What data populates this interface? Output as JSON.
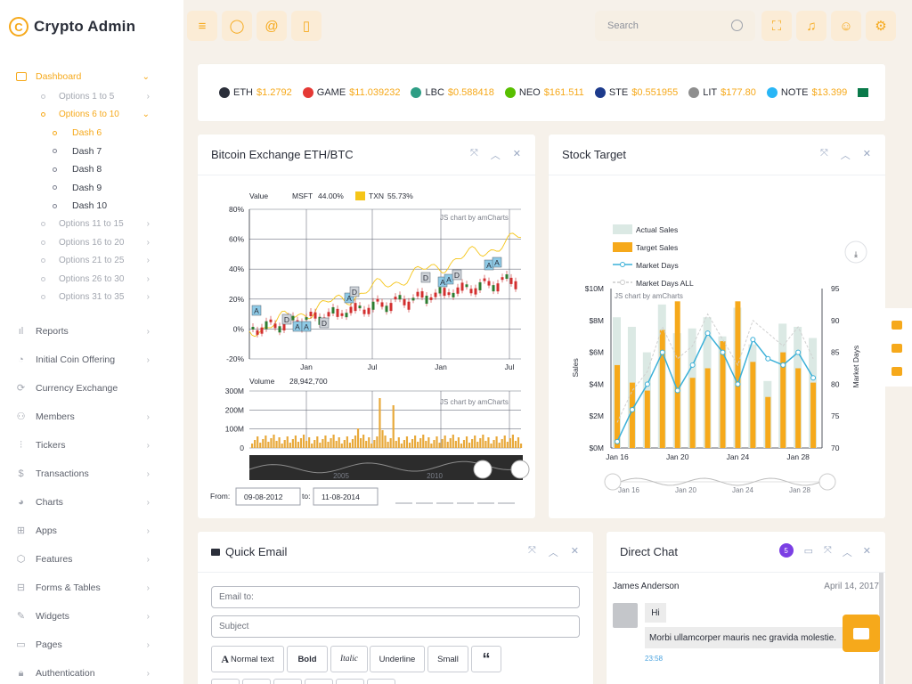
{
  "app": {
    "title": "Crypto Admin",
    "logo_glyph": "C"
  },
  "sidebar": {
    "dashboard": {
      "label": "Dashboard"
    },
    "options": [
      {
        "label": "Options 1 to 5",
        "active": false
      },
      {
        "label": "Options 6 to 10",
        "active": true
      }
    ],
    "dash_items": [
      "Dash 6",
      "Dash 7",
      "Dash 8",
      "Dash 9",
      "Dash 10"
    ],
    "options_more": [
      "Options 11 to 15",
      "Options 16 to 20",
      "Options 21 to 25",
      "Options 26 to 30",
      "Options 31 to 35"
    ],
    "main_items": [
      {
        "label": "Reports",
        "icon": "bar-chart-icon",
        "glyph": "ıl",
        "chevron": true
      },
      {
        "label": "Initial Coin Offering",
        "icon": "pie-chart-icon",
        "glyph": "◔",
        "chevron": true
      },
      {
        "label": "Currency Exchange",
        "icon": "refresh-icon",
        "glyph": "⟳",
        "chevron": false
      },
      {
        "label": "Members",
        "icon": "users-icon",
        "glyph": "⚇",
        "chevron": true
      },
      {
        "label": "Tickers",
        "icon": "sliders-icon",
        "glyph": "⫶",
        "chevron": true
      },
      {
        "label": "Transactions",
        "icon": "dollar-icon",
        "glyph": "$",
        "chevron": true
      },
      {
        "label": "Charts",
        "icon": "pie-icon",
        "glyph": "◕",
        "chevron": true
      },
      {
        "label": "Apps",
        "icon": "grid-icon",
        "glyph": "⊞",
        "chevron": true
      },
      {
        "label": "Features",
        "icon": "box-icon",
        "glyph": "⬡",
        "chevron": true
      },
      {
        "label": "Forms & Tables",
        "icon": "inbox-icon",
        "glyph": "⊟",
        "chevron": true
      },
      {
        "label": "Widgets",
        "icon": "edit-icon",
        "glyph": "✎",
        "chevron": true
      },
      {
        "label": "Pages",
        "icon": "cast-icon",
        "glyph": "▭",
        "chevron": true
      },
      {
        "label": "Authentication",
        "icon": "lock-icon",
        "glyph": "🔒︎",
        "chevron": true
      }
    ]
  },
  "topbar": {
    "search_placeholder": "Search",
    "left_buttons": [
      {
        "name": "menu-icon",
        "glyph": "≡"
      },
      {
        "name": "chat-icon",
        "glyph": "◯"
      },
      {
        "name": "at-icon",
        "glyph": "@"
      },
      {
        "name": "clipboard-icon",
        "glyph": "▯"
      }
    ],
    "right_buttons": [
      {
        "name": "fullscreen-icon",
        "glyph": "⛶"
      },
      {
        "name": "bell-icon",
        "glyph": "♫"
      },
      {
        "name": "user-icon",
        "glyph": "☺"
      },
      {
        "name": "settings-icon",
        "glyph": "⚙"
      }
    ]
  },
  "ticker": [
    {
      "sym": "ETH",
      "price": "$1.2792",
      "color": "#2b2f3a"
    },
    {
      "sym": "GAME",
      "price": "$11.039232",
      "color": "#e53935"
    },
    {
      "sym": "LBC",
      "price": "$0.588418",
      "color": "#2e9e85"
    },
    {
      "sym": "NEO",
      "price": "$161.511",
      "color": "#58bf00"
    },
    {
      "sym": "STE",
      "price": "$0.551955",
      "color": "#1d3b8c"
    },
    {
      "sym": "LIT",
      "price": "$177.80",
      "color": "#8e8e8e"
    },
    {
      "sym": "NOTE",
      "price": "$13.399",
      "color": "#29b6f6"
    }
  ],
  "btc_card": {
    "title": "Bitcoin Exchange ETH/BTC",
    "legend_value": "Value",
    "legend_msft": "MSFT",
    "legend_msft_val": "44.00%",
    "legend_txn": "TXN",
    "legend_txn_val": "55.73%",
    "watermark": "JS chart by amCharts",
    "y_ticks": [
      "80%",
      "60%",
      "40%",
      "20%",
      "0%",
      "-20%"
    ],
    "x_ticks": [
      "Jan",
      "Jul",
      "Jan",
      "Jul"
    ],
    "volume_label": "Volume",
    "volume_value": "28,942,700",
    "vol_ticks": [
      "300M",
      "200M",
      "100M",
      "0"
    ],
    "scroll_years": [
      "2005",
      "2010"
    ],
    "from_label": "From:",
    "from_value": "09-08-2012",
    "to_label": "to:",
    "to_value": "11-08-2014",
    "flags": [
      "A",
      "D",
      "A",
      "A",
      "D",
      "A",
      "D",
      "D",
      "A",
      "A",
      "D",
      "A",
      "A"
    ]
  },
  "stock_card": {
    "title": "Stock Target",
    "legend": [
      "Actual Sales",
      "Target Sales",
      "Market Days",
      "Market Days ALL"
    ],
    "watermark": "JS chart by amCharts",
    "y_left": [
      "$10M",
      "$8M",
      "$6M",
      "$4M",
      "$2M",
      "$0M"
    ],
    "y_right": [
      "95",
      "90",
      "85",
      "80",
      "75",
      "70"
    ],
    "y_left_label": "Sales",
    "y_right_label": "Market Days",
    "x_ticks": [
      "Jan 16",
      "Jan 20",
      "Jan 24",
      "Jan 28"
    ],
    "scroll_x": [
      "Jan 16",
      "Jan 20",
      "Jan 24",
      "Jan 28"
    ],
    "chart_data": {
      "type": "bar",
      "x": [
        "Jan 16",
        "Jan 17",
        "Jan 18",
        "Jan 19",
        "Jan 20",
        "Jan 21",
        "Jan 22",
        "Jan 23",
        "Jan 24",
        "Jan 25",
        "Jan 26",
        "Jan 27",
        "Jan 28",
        "Jan 29"
      ],
      "series": [
        {
          "name": "Actual Sales",
          "values": [
            8.2,
            7.6,
            6.0,
            9.0,
            7.2,
            7.5,
            8.2,
            7.0,
            8.8,
            6.5,
            4.2,
            7.8,
            7.6,
            6.9
          ]
        },
        {
          "name": "Target Sales",
          "values": [
            5.2,
            4.1,
            3.6,
            7.4,
            9.2,
            4.4,
            5.0,
            6.7,
            9.2,
            5.4,
            3.2,
            6.0,
            5.0,
            4.1
          ]
        },
        {
          "name": "Market Days",
          "values": [
            71,
            76,
            80,
            85,
            79,
            83,
            88,
            85,
            80,
            87,
            84,
            83,
            85,
            81
          ]
        },
        {
          "name": "Market Days ALL",
          "values": [
            74,
            79,
            82,
            89,
            84,
            86,
            91,
            87,
            83,
            90,
            88,
            86,
            89,
            84
          ]
        }
      ],
      "ylim": [
        0,
        10
      ],
      "y2lim": [
        70,
        95
      ]
    }
  },
  "email_card": {
    "title": "Quick Email",
    "to_placeholder": "Email to:",
    "subject_placeholder": "Subject",
    "buttons": [
      "Normal text",
      "Bold",
      "Italic",
      "Underline",
      "Small",
      "“"
    ]
  },
  "chat_card": {
    "title": "Direct Chat",
    "badge": "5",
    "name": "James Anderson",
    "date": "April 14, 2017",
    "msg1": "Hi",
    "msg2": "Morbi ullamcorper mauris nec gravida molestie.",
    "time": "23:58"
  }
}
